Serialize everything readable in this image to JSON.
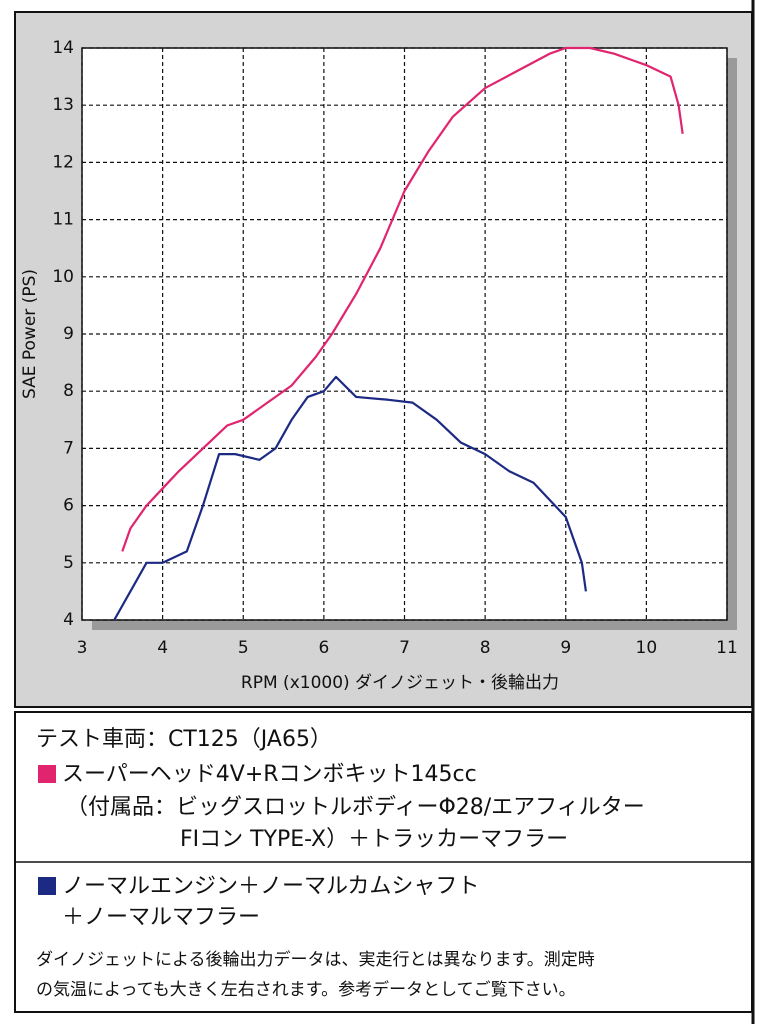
{
  "chart_data": {
    "type": "line",
    "x_label": "RPM (x1000) ダイノジェット・後輪出力",
    "y_label": "SAE Power (PS)",
    "xlim": [
      3,
      11
    ],
    "xticks": [
      3,
      4,
      5,
      6,
      7,
      8,
      9,
      10,
      11
    ],
    "ylim": [
      4,
      14
    ],
    "yticks": [
      4,
      5,
      6,
      7,
      8,
      9,
      10,
      11,
      12,
      13,
      14
    ],
    "grid": true,
    "series": [
      {
        "name": "スーパーヘッド4V+Rコンボキット145cc",
        "color": "#e0246e",
        "x": [
          3.5,
          3.6,
          3.8,
          4.0,
          4.2,
          4.5,
          4.8,
          5.0,
          5.3,
          5.6,
          5.9,
          6.1,
          6.4,
          6.7,
          7.0,
          7.3,
          7.6,
          8.0,
          8.4,
          8.8,
          9.0,
          9.3,
          9.6,
          10.0,
          10.3,
          10.4,
          10.45
        ],
        "values": [
          5.2,
          5.6,
          6.0,
          6.3,
          6.6,
          7.0,
          7.4,
          7.5,
          7.8,
          8.1,
          8.6,
          9.0,
          9.7,
          10.5,
          11.5,
          12.2,
          12.8,
          13.3,
          13.6,
          13.9,
          14.0,
          14.0,
          13.9,
          13.7,
          13.5,
          13.0,
          12.5
        ]
      },
      {
        "name": "ノーマルエンジン＋ノーマルカムシャフト",
        "color": "#1c2a84",
        "x": [
          3.4,
          3.6,
          3.8,
          4.0,
          4.3,
          4.5,
          4.7,
          4.9,
          5.2,
          5.4,
          5.6,
          5.8,
          6.0,
          6.15,
          6.4,
          6.8,
          7.1,
          7.4,
          7.7,
          8.0,
          8.3,
          8.6,
          8.8,
          9.0,
          9.1,
          9.2,
          9.25
        ],
        "values": [
          4.0,
          4.5,
          5.0,
          5.0,
          5.2,
          6.0,
          6.9,
          6.9,
          6.8,
          7.0,
          7.5,
          7.9,
          8.0,
          8.25,
          7.9,
          7.85,
          7.8,
          7.5,
          7.1,
          6.9,
          6.6,
          6.4,
          6.1,
          5.8,
          5.4,
          5.0,
          4.5
        ]
      }
    ],
    "annotations": [
      "テスト車両：CT125（JA65）",
      "（付属品：ビッグスロットルボディーΦ28/エアフィルター",
      "FIコン TYPE-X）＋トラッカーマフラー",
      "＋ノーマルマフラー",
      "ダイノジェットによる後輪出力データは、実走行とは異なります。測定時",
      "の気温によっても大きく左右されます。参考データとしてご覧下さい。"
    ]
  }
}
